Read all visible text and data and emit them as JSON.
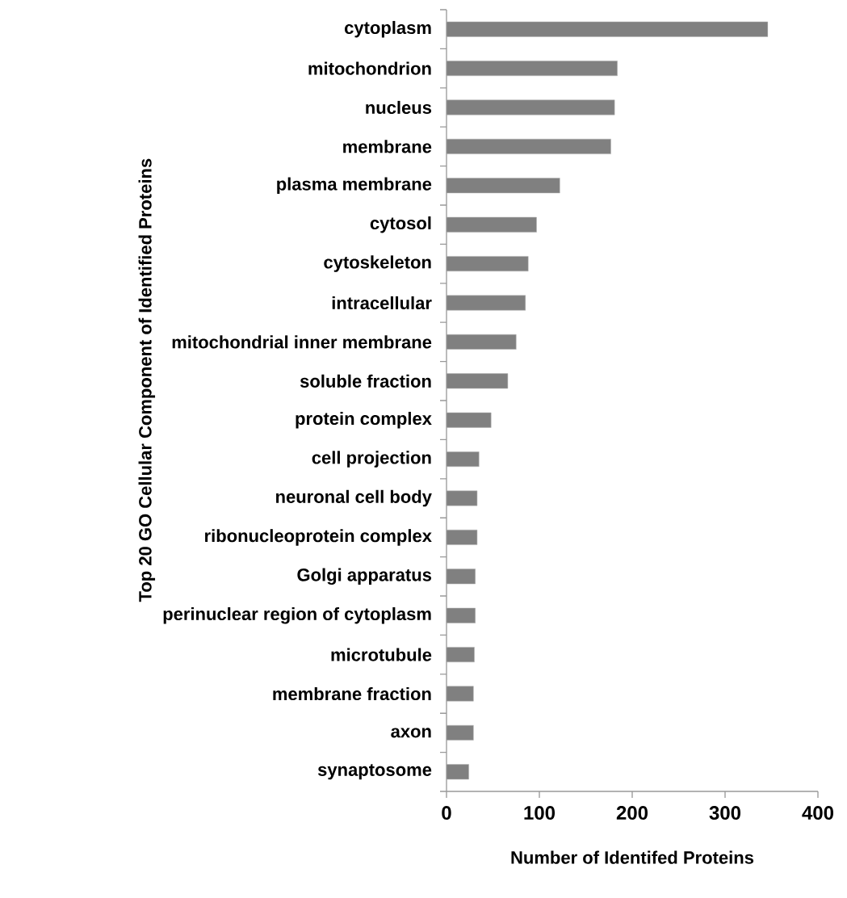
{
  "chart_data": {
    "type": "bar",
    "orientation": "horizontal",
    "xlabel": "Number of Identifed Proteins",
    "ylabel": "Top 20 GO Cellular Component of Identified Proteins",
    "categories": [
      "cytoplasm",
      "mitochondrion",
      "nucleus",
      "membrane",
      "plasma membrane",
      "cytosol",
      "cytoskeleton",
      "intracellular",
      "mitochondrial inner membrane",
      "soluble fraction",
      "protein complex",
      "cell projection",
      "neuronal cell body",
      "ribonucleoprotein complex",
      "Golgi apparatus",
      "perinuclear region of cytoplasm",
      "microtubule",
      "membrane fraction",
      "axon",
      "synaptosome"
    ],
    "values": [
      346,
      184,
      181,
      177,
      122,
      97,
      88,
      85,
      75,
      66,
      48,
      35,
      33,
      33,
      31,
      31,
      30,
      29,
      29,
      24
    ],
    "color": "#808080",
    "xlim": [
      0,
      400
    ],
    "xticks": [
      0,
      100,
      200,
      300,
      400
    ],
    "grid": false
  }
}
